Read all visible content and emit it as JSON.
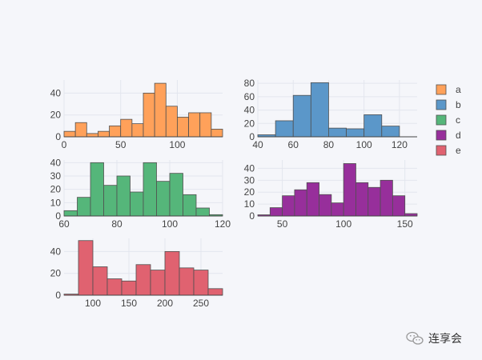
{
  "chart_data": [
    {
      "type": "bar",
      "series_name": "a",
      "color": "#ffa15a",
      "bin_edges": [
        0,
        10,
        20,
        30,
        40,
        50,
        60,
        70,
        80,
        90,
        100,
        110,
        120,
        130,
        140
      ],
      "values": [
        5,
        13,
        3,
        5,
        10,
        16,
        12,
        40,
        49,
        28,
        18,
        22,
        22,
        7
      ],
      "xlim": [
        0,
        140
      ],
      "ylim": [
        0,
        52
      ],
      "xticks": [
        0,
        50,
        100
      ],
      "yticks": [
        0,
        20,
        40
      ]
    },
    {
      "type": "bar",
      "series_name": "b",
      "color": "#5b97c9",
      "bin_edges": [
        40,
        50,
        60,
        70,
        80,
        90,
        100,
        110,
        120
      ],
      "values": [
        3,
        24,
        62,
        81,
        13,
        12,
        33,
        16
      ],
      "xlim": [
        40,
        130
      ],
      "ylim": [
        0,
        85
      ],
      "xticks": [
        40,
        60,
        80,
        100,
        120
      ],
      "yticks": [
        0,
        20,
        40,
        60,
        80
      ]
    },
    {
      "type": "bar",
      "series_name": "c",
      "color": "#55b67a",
      "bin_edges": [
        60,
        65,
        70,
        75,
        80,
        85,
        90,
        95,
        100,
        105,
        110,
        115,
        120
      ],
      "values": [
        4,
        14,
        40,
        23,
        30,
        18,
        40,
        26,
        32,
        16,
        6,
        1
      ],
      "xlim": [
        60,
        120
      ],
      "ylim": [
        0,
        42
      ],
      "xticks": [
        60,
        80,
        100,
        120
      ],
      "yticks": [
        0,
        10,
        20,
        30,
        40
      ]
    },
    {
      "type": "bar",
      "series_name": "d",
      "color": "#972f9b",
      "bin_edges": [
        30,
        40,
        50,
        60,
        70,
        80,
        90,
        100,
        110,
        120,
        130,
        140,
        150,
        160
      ],
      "values": [
        1,
        7,
        17,
        22,
        28,
        18,
        11,
        44,
        28,
        24,
        30,
        17,
        2
      ],
      "xlim": [
        30,
        160
      ],
      "ylim": [
        0,
        47
      ],
      "xticks": [
        50,
        100,
        150
      ],
      "yticks": [
        0,
        10,
        20,
        30,
        40
      ]
    },
    {
      "type": "bar",
      "series_name": "e",
      "color": "#e06270",
      "bin_edges": [
        60,
        80,
        100,
        120,
        140,
        160,
        180,
        200,
        220,
        240,
        260,
        280
      ],
      "values": [
        1,
        50,
        26,
        15,
        13,
        28,
        23,
        40,
        25,
        23,
        6
      ],
      "xlim": [
        60,
        280
      ],
      "ylim": [
        0,
        52
      ],
      "xticks": [
        100,
        150,
        200,
        250
      ],
      "yticks": [
        0,
        20,
        40
      ]
    }
  ],
  "legend": {
    "placement": "top-right",
    "items": [
      {
        "label": "a",
        "color": "#ffa15a"
      },
      {
        "label": "b",
        "color": "#5b97c9"
      },
      {
        "label": "c",
        "color": "#55b67a"
      },
      {
        "label": "d",
        "color": "#972f9b"
      },
      {
        "label": "e",
        "color": "#e06270"
      }
    ]
  },
  "watermark": {
    "text": "连享会"
  }
}
